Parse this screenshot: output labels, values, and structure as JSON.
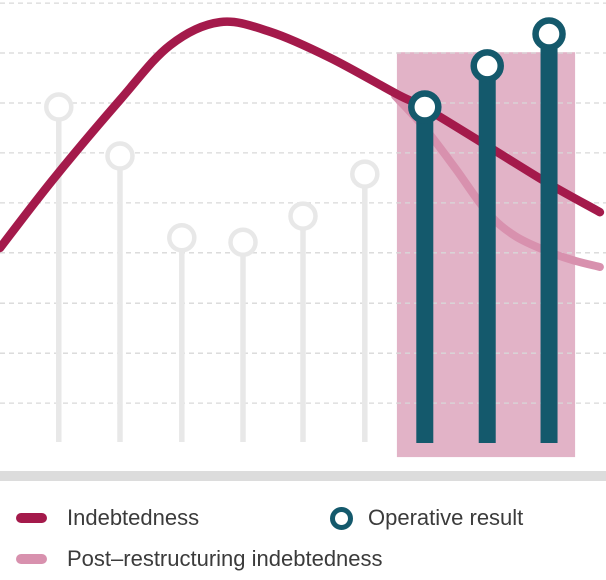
{
  "chart_data": {
    "type": "composite",
    "title": "",
    "value_scale": "relative 0-100 (chart shows no numeric axis labels; values estimated from plot geometry, baseline = 0)",
    "x_scale": "percent of plot width (no category labels shown)",
    "series": [
      {
        "name": "Operative result",
        "type": "lollipop",
        "x_pct": [
          9.7,
          19.8,
          30.0,
          40.1,
          50.0,
          60.2,
          70.1,
          80.4,
          90.6
        ],
        "values": [
          75.8,
          64.7,
          46.2,
          45.2,
          51.1,
          60.6,
          75.8,
          85.1,
          92.3
        ],
        "highlighted": [
          false,
          false,
          false,
          false,
          false,
          false,
          true,
          true,
          true
        ]
      },
      {
        "name": "Indebtedness",
        "type": "line",
        "points": [
          [
            0,
            43.9
          ],
          [
            8.7,
            59.3
          ],
          [
            19.8,
            77.4
          ],
          [
            28.1,
            89.8
          ],
          [
            36.3,
            95.0
          ],
          [
            44.6,
            92.8
          ],
          [
            54.5,
            86.9
          ],
          [
            65.5,
            78.7
          ],
          [
            70.1,
            75.6
          ],
          [
            80.4,
            67.0
          ],
          [
            90.6,
            58.4
          ],
          [
            99.0,
            52.0
          ]
        ]
      },
      {
        "name": "Post–restructuring indebtedness",
        "type": "line",
        "points": [
          [
            65.2,
            78.3
          ],
          [
            70.1,
            71.0
          ],
          [
            75.1,
            62.0
          ],
          [
            80.4,
            52.0
          ],
          [
            85.0,
            46.6
          ],
          [
            90.6,
            43.0
          ],
          [
            94.9,
            41.0
          ],
          [
            99.0,
            39.6
          ]
        ]
      }
    ],
    "highlight_region": {
      "x1_pct": 65.5,
      "x2_pct": 94.9,
      "v_top": 88.2,
      "v_bottom": -3.4
    },
    "gridlines_v": [
      99.3,
      88.0,
      76.7,
      65.4,
      54.1,
      42.8,
      31.4,
      20.1,
      8.8
    ],
    "baseline_v": 0,
    "grid": true,
    "legend_position": "bottom",
    "colors": {
      "indebtedness": "#A41A4B",
      "post_restructuring": "#D891AE",
      "operative_result": "#14596C",
      "muted_lollipop": "#E8E8E8",
      "highlight_region": "#E2B3C7",
      "gridline": "#D8D8D8",
      "baseline_bar": "#DCDCDC",
      "legend_text": "#3B3B3B"
    }
  },
  "legend": {
    "items": [
      {
        "label": "Indebtedness",
        "swatch": "line"
      },
      {
        "label": "Operative result",
        "swatch": "ring"
      },
      {
        "label": "Post–restructuring indebtedness",
        "swatch": "line"
      }
    ]
  }
}
